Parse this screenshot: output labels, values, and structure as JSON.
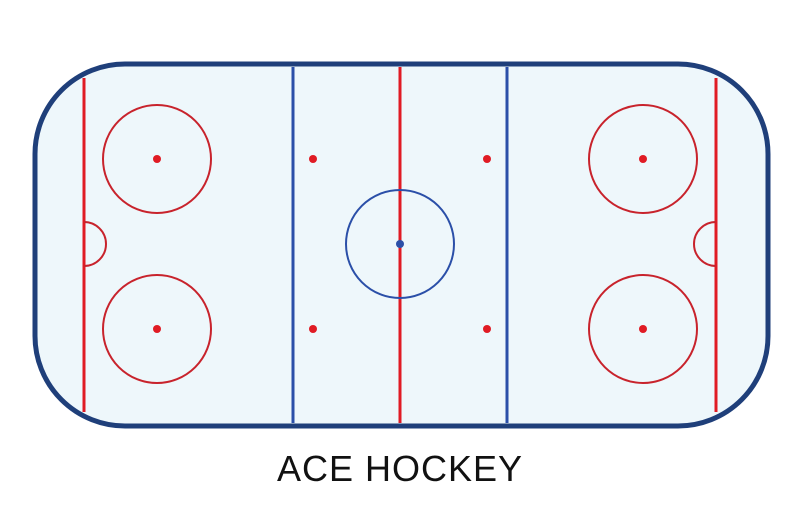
{
  "caption": "ACE HOCKEY",
  "colors": {
    "background": "#ffffff",
    "ice": "#eef7fb",
    "boards": "#1f3f7a",
    "red_line": "#e01b24",
    "blue_line": "#2b4fa8",
    "faceoff_circle": "#c8232c",
    "center_circle": "#2b4fa8"
  },
  "rink": {
    "lines": [
      "goal-line-left",
      "blue-line-left",
      "center-red-line",
      "blue-line-right",
      "goal-line-right"
    ],
    "end_zone_faceoff_circles": 4,
    "neutral_zone_faceoff_dots": 4,
    "center_faceoff_circles": 1,
    "goal_creases": 2
  }
}
